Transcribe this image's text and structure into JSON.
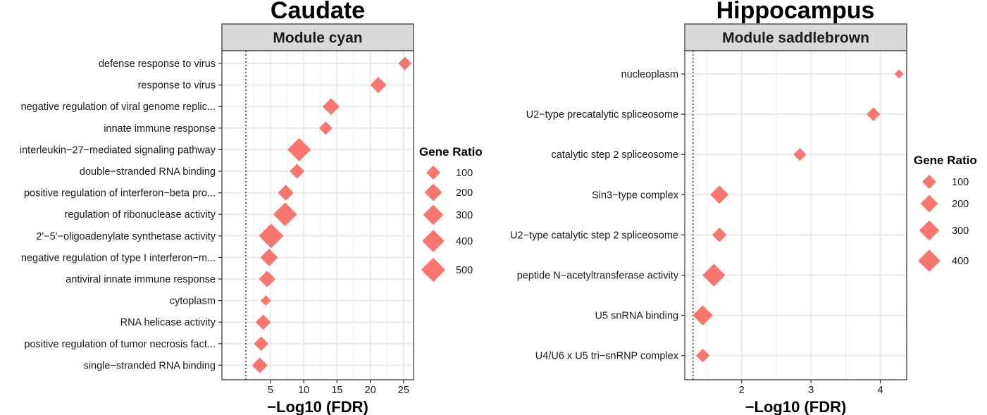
{
  "colors": {
    "point": "#F8766D",
    "strip_fill": "#D9D9D9",
    "grid": "#EBEBEB",
    "panel_border": "#333333"
  },
  "chart_data": [
    {
      "type": "scatter",
      "title": "Caudate",
      "strip": "Module cyan",
      "xlabel": "−Log10 (FDR)",
      "xlim": [
        -2.3,
        26.5
      ],
      "x_ticks": [
        5,
        10,
        15,
        20,
        25
      ],
      "reference_line_x": 1.3,
      "legend_title": "Gene Ratio",
      "legend": [
        100,
        200,
        300,
        400,
        500
      ],
      "categories": [
        "defense response to virus",
        "response to virus",
        "negative regulation of viral genome replic...",
        "innate immune response",
        "interleukin−27−mediated signaling pathway",
        "double−stranded RNA binding",
        "positive regulation of interferon−beta pro...",
        "regulation of ribonuclease activity",
        "2'−5'−oligoadenylate synthetase activity",
        "negative regulation of type I interferon−m...",
        "antiviral innate immune response",
        "cytoplasm",
        "RNA helicase activity",
        "positive regulation of tumor necrosis fact...",
        "single−stranded RNA binding"
      ],
      "values": [
        25.2,
        21.2,
        14.1,
        13.3,
        9.3,
        9.0,
        7.3,
        7.2,
        5.1,
        4.8,
        4.5,
        4.3,
        3.9,
        3.6,
        3.4
      ],
      "gene_ratio": [
        80,
        160,
        180,
        80,
        450,
        120,
        150,
        470,
        520,
        200,
        170,
        30,
        130,
        110,
        140
      ]
    },
    {
      "type": "scatter",
      "title": "Hippocampus",
      "strip": "Module saddlebrown",
      "xlabel": "−Log10 (FDR)",
      "xlim": [
        1.18,
        4.38
      ],
      "x_ticks": [
        2,
        3,
        4
      ],
      "reference_line_x": 1.3,
      "legend_title": "Gene Ratio",
      "legend": [
        100,
        200,
        300,
        400
      ],
      "categories": [
        "nucleoplasm",
        "U2−type precatalytic spliceosome",
        "catalytic step 2 spliceosome",
        "Sin3−type complex",
        "U2−type catalytic step 2 spliceosome",
        "peptide N−acetyltransferase activity",
        "U5 snRNA binding",
        "U4/U6 x U5 tri−snRNP complex"
      ],
      "values": [
        4.27,
        3.9,
        2.84,
        1.68,
        1.68,
        1.6,
        1.44,
        1.44
      ],
      "gene_ratio": [
        15,
        90,
        70,
        230,
        110,
        420,
        300,
        90
      ]
    }
  ]
}
